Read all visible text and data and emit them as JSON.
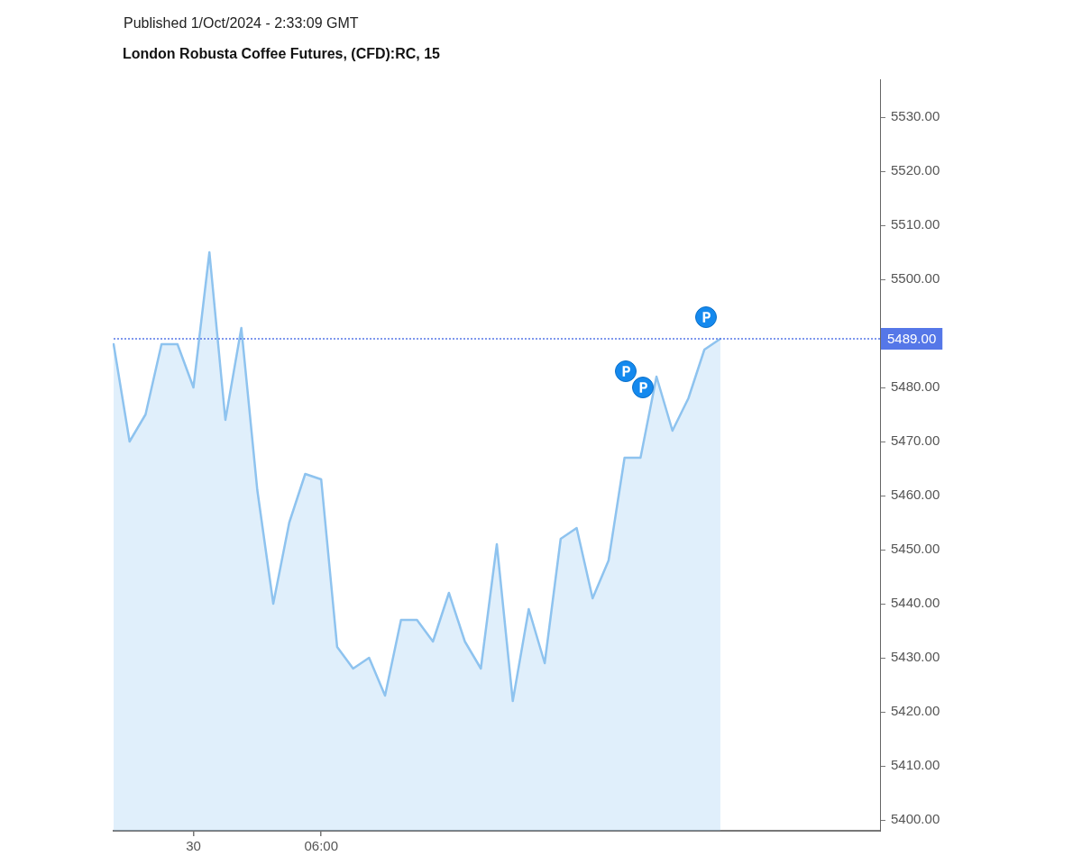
{
  "chart_data": {
    "type": "area",
    "title": "London Robusta Coffee Futures, (CFD):RC, 15",
    "annotations": [
      "Published 1/Oct/2024 - 2:33:09 GMT"
    ],
    "categories": [
      null,
      null,
      null,
      null,
      null,
      "30",
      null,
      null,
      null,
      null,
      null,
      null,
      null,
      "06:00",
      null,
      null,
      null,
      null,
      null,
      null,
      null,
      null,
      null,
      null,
      null,
      null,
      null,
      null,
      null,
      null,
      null,
      null,
      null,
      null,
      null,
      null,
      null,
      null,
      null,
      null,
      null,
      null,
      null,
      null,
      null,
      null,
      null,
      null,
      null
    ],
    "values": [
      5488,
      5470,
      5475,
      5488,
      5488,
      5480,
      5505,
      5474,
      5491,
      5461,
      5440,
      5455,
      5464,
      5463,
      5432,
      5428,
      5430,
      5423,
      5437,
      5437,
      5433,
      5442,
      5433,
      5428,
      5451,
      5422,
      5439,
      5429,
      5452,
      5454,
      5441,
      5448,
      5467,
      5467,
      5482,
      5472,
      5478,
      5487,
      5489,
      null,
      null,
      null,
      null,
      null,
      null,
      null,
      null,
      null,
      null
    ],
    "color": "#8ec3ef",
    "marker": "none",
    "ylim": [
      5398,
      5537
    ],
    "yticks": [
      {
        "value": 5400,
        "label": "5400.00"
      },
      {
        "value": 5410,
        "label": "5410.00"
      },
      {
        "value": 5420,
        "label": "5420.00"
      },
      {
        "value": 5430,
        "label": "5430.00"
      },
      {
        "value": 5440,
        "label": "5440.00"
      },
      {
        "value": 5450,
        "label": "5450.00"
      },
      {
        "value": 5460,
        "label": "5460.00"
      },
      {
        "value": 5470,
        "label": "5470.00"
      },
      {
        "value": 5480,
        "label": "5480.00"
      },
      {
        "value": 5490,
        "label": null
      },
      {
        "value": 5500,
        "label": "5500.00"
      },
      {
        "value": 5510,
        "label": "5510.00"
      },
      {
        "value": 5520,
        "label": "5520.00"
      },
      {
        "value": 5530,
        "label": "5530.00"
      }
    ],
    "ref_lines": [
      {
        "axis": "y",
        "value": 5489,
        "label": "5489.00",
        "color": "#5577e8",
        "line_style": "dotted"
      }
    ]
  }
}
